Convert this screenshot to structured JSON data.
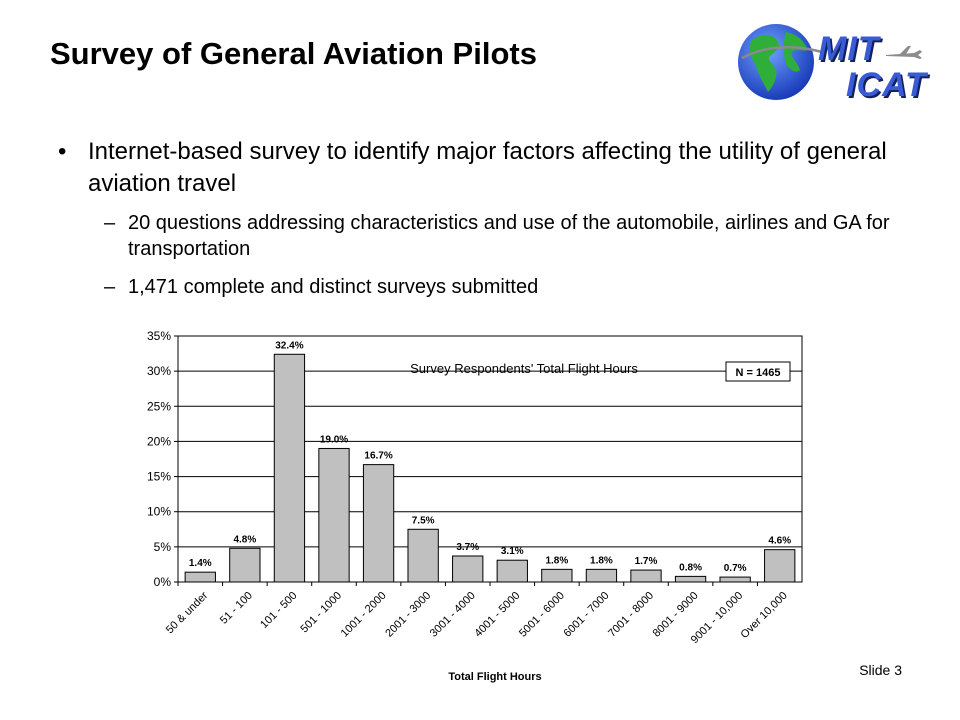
{
  "slide": {
    "title": "Survey of General Aviation Pilots",
    "slide_number": "Slide 3"
  },
  "logo": {
    "line1": "MIT",
    "line2": "ICAT"
  },
  "bullets": [
    {
      "text": "Internet-based survey to identify major factors affecting the utility of general aviation travel",
      "sub": [
        "20 questions addressing characteristics and use of the automobile, airlines and GA for transportation",
        "1,471 complete and distinct surveys submitted"
      ]
    }
  ],
  "chart_data": {
    "type": "bar",
    "title": "Survey Respondents' Total Flight Hours",
    "annotation": "N = 1465",
    "xlabel": "Total Flight Hours",
    "ylabel": "",
    "ylim": [
      0,
      35
    ],
    "yticks": [
      "0%",
      "5%",
      "10%",
      "15%",
      "20%",
      "25%",
      "30%",
      "35%"
    ],
    "grid": true,
    "categories": [
      "50 & under",
      "51 - 100",
      "101 - 500",
      "501 - 1000",
      "1001 - 2000",
      "2001 - 3000",
      "3001 - 4000",
      "4001 - 5000",
      "5001 - 6000",
      "6001 - 7000",
      "7001 - 8000",
      "8001 - 9000",
      "9001 - 10,000",
      "Over 10,000"
    ],
    "values": [
      1.4,
      4.8,
      32.4,
      19.0,
      16.7,
      7.5,
      3.7,
      3.1,
      1.8,
      1.8,
      1.7,
      0.8,
      0.7,
      4.6
    ],
    "value_labels": [
      "1.4%",
      "4.8%",
      "32.4%",
      "19.0%",
      "16.7%",
      "7.5%",
      "3.7%",
      "3.1%",
      "1.8%",
      "1.8%",
      "1.7%",
      "0.8%",
      "0.7%",
      "4.6%"
    ],
    "bar_color": "#c0c0c0",
    "bar_stroke": "#000000"
  }
}
